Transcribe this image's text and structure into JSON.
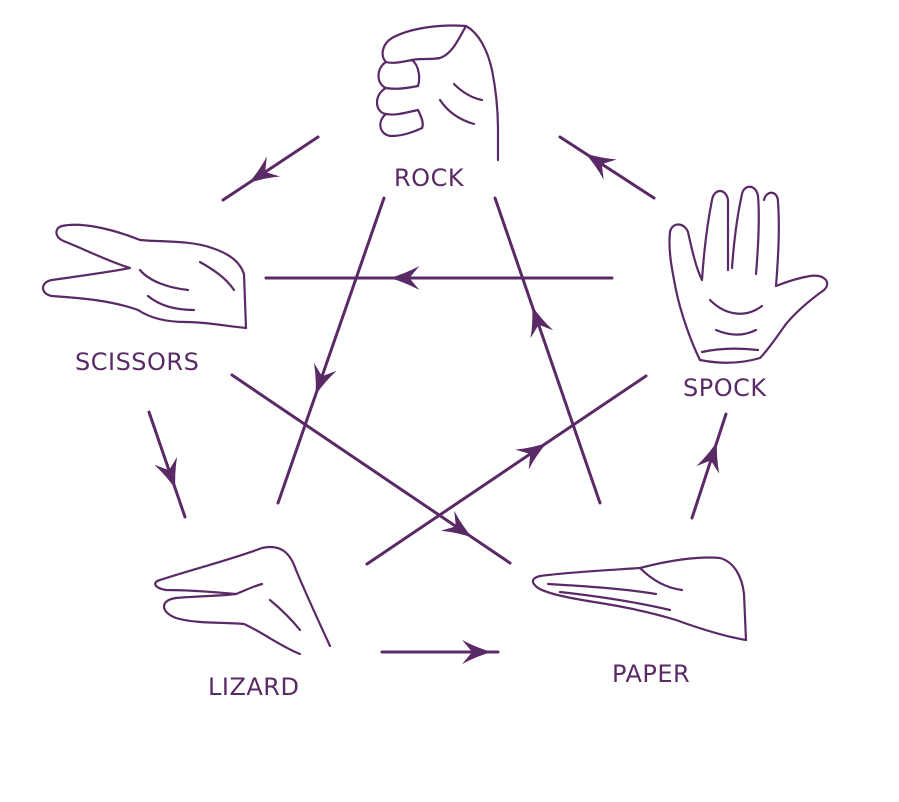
{
  "diagram": {
    "color": "#5a2a66",
    "background": "#ffffff",
    "nodes": {
      "rock": {
        "label": "ROCK",
        "icon": "fist-hand-icon"
      },
      "paper": {
        "label": "PAPER",
        "icon": "flat-hand-icon"
      },
      "scissors": {
        "label": "SCISSORS",
        "icon": "two-finger-hand-icon"
      },
      "lizard": {
        "label": "LIZARD",
        "icon": "lizard-hand-icon"
      },
      "spock": {
        "label": "SPOCK",
        "icon": "vulcan-salute-hand-icon"
      }
    },
    "edges": [
      {
        "from": "rock",
        "to": "scissors"
      },
      {
        "from": "rock",
        "to": "lizard"
      },
      {
        "from": "paper",
        "to": "rock"
      },
      {
        "from": "paper",
        "to": "spock"
      },
      {
        "from": "scissors",
        "to": "paper"
      },
      {
        "from": "scissors",
        "to": "lizard"
      },
      {
        "from": "lizard",
        "to": "paper"
      },
      {
        "from": "lizard",
        "to": "spock"
      },
      {
        "from": "spock",
        "to": "scissors"
      },
      {
        "from": "spock",
        "to": "rock"
      }
    ]
  }
}
